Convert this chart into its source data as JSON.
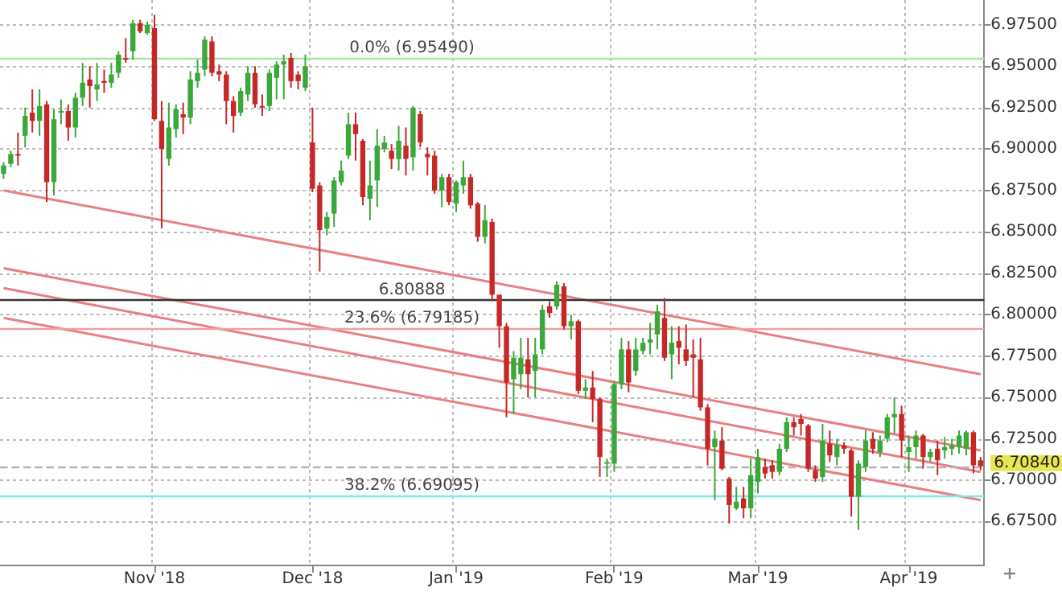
{
  "chart_data": {
    "type": "candlestick",
    "categories": [
      null,
      null,
      null,
      null,
      null,
      null,
      null,
      null,
      null,
      null,
      null,
      null,
      null,
      null,
      null,
      null,
      null,
      null,
      null,
      null,
      null,
      "Nov '18",
      null,
      null,
      null,
      null,
      null,
      null,
      null,
      null,
      null,
      null,
      null,
      null,
      null,
      null,
      null,
      null,
      null,
      null,
      null,
      null,
      null,
      "Dec '18",
      null,
      null,
      null,
      null,
      null,
      null,
      null,
      null,
      null,
      null,
      null,
      null,
      null,
      null,
      null,
      null,
      null,
      null,
      null,
      "Jan '19",
      null,
      null,
      null,
      null,
      null,
      null,
      null,
      null,
      null,
      null,
      null,
      null,
      null,
      null,
      null,
      null,
      null,
      null,
      null,
      null,
      null,
      "Feb '19",
      null,
      null,
      null,
      null,
      null,
      null,
      null,
      null,
      null,
      null,
      null,
      null,
      null,
      null,
      null,
      null,
      null,
      null,
      null,
      "Mar '19",
      null,
      null,
      null,
      null,
      null,
      null,
      null,
      null,
      null,
      null,
      null,
      null,
      null,
      null,
      null,
      null,
      null,
      null,
      null,
      null,
      "Apr '19",
      null,
      null,
      null,
      null,
      null,
      null,
      null,
      null,
      null,
      null
    ],
    "ohlc": [
      [
        6.885,
        6.892,
        6.882,
        6.89
      ],
      [
        6.891,
        6.899,
        6.889,
        6.897
      ],
      [
        6.897,
        6.91,
        6.89,
        6.896
      ],
      [
        6.908,
        6.925,
        6.901,
        6.92
      ],
      [
        6.922,
        6.936,
        6.91,
        6.917
      ],
      [
        6.917,
        6.936,
        6.908,
        6.926
      ],
      [
        6.927,
        6.929,
        6.868,
        6.88
      ],
      [
        6.88,
        6.924,
        6.872,
        6.918
      ],
      [
        6.922,
        6.93,
        6.915,
        6.923
      ],
      [
        6.923,
        6.927,
        6.905,
        6.913
      ],
      [
        6.913,
        6.934,
        6.907,
        6.931
      ],
      [
        6.931,
        6.952,
        6.926,
        6.94
      ],
      [
        6.942,
        6.95,
        6.925,
        6.938
      ],
      [
        6.936,
        6.952,
        6.929,
        6.939
      ],
      [
        6.941,
        6.948,
        6.934,
        6.94
      ],
      [
        6.94,
        6.952,
        6.937,
        6.945
      ],
      [
        6.946,
        6.959,
        6.943,
        6.957
      ],
      [
        6.955,
        6.967,
        6.952,
        6.954
      ],
      [
        6.959,
        6.978,
        6.954,
        6.976
      ],
      [
        6.976,
        6.978,
        6.97,
        6.971
      ],
      [
        6.97,
        6.977,
        6.969,
        6.975
      ],
      [
        6.973,
        6.981,
        6.917,
        6.918
      ],
      [
        6.917,
        6.929,
        6.852,
        6.9
      ],
      [
        6.894,
        6.928,
        6.89,
        6.913
      ],
      [
        6.912,
        6.927,
        6.907,
        6.924
      ],
      [
        6.921,
        6.928,
        6.909,
        6.919
      ],
      [
        6.919,
        6.947,
        6.915,
        6.942
      ],
      [
        6.941,
        6.954,
        6.937,
        6.946
      ],
      [
        6.948,
        6.968,
        6.944,
        6.966
      ],
      [
        6.965,
        6.968,
        6.944,
        6.946
      ],
      [
        6.947,
        6.951,
        6.941,
        6.945
      ],
      [
        6.945,
        6.947,
        6.915,
        6.929
      ],
      [
        6.929,
        6.932,
        6.91,
        6.92
      ],
      [
        6.922,
        6.937,
        6.92,
        6.935
      ],
      [
        6.933,
        6.95,
        6.929,
        6.946
      ],
      [
        6.946,
        6.95,
        6.925,
        6.927
      ],
      [
        6.926,
        6.933,
        6.92,
        6.925
      ],
      [
        6.926,
        6.948,
        6.923,
        6.946
      ],
      [
        6.943,
        6.953,
        6.93,
        6.951
      ],
      [
        6.951,
        6.957,
        6.93,
        6.953
      ],
      [
        6.955,
        6.958,
        6.937,
        6.941
      ],
      [
        6.945,
        6.947,
        6.936,
        6.941
      ],
      [
        6.937,
        6.957,
        6.935,
        6.95
      ],
      [
        6.904,
        6.925,
        6.874,
        6.876
      ],
      [
        6.878,
        6.88,
        6.826,
        6.851
      ],
      [
        6.852,
        6.862,
        6.848,
        6.859
      ],
      [
        6.861,
        6.883,
        6.853,
        6.881
      ],
      [
        6.88,
        6.893,
        6.878,
        6.887
      ],
      [
        6.896,
        6.922,
        6.894,
        6.915
      ],
      [
        6.915,
        6.922,
        6.893,
        6.909
      ],
      [
        6.905,
        6.906,
        6.866,
        6.871
      ],
      [
        6.87,
        6.893,
        6.857,
        6.878
      ],
      [
        6.881,
        6.912,
        6.865,
        6.902
      ],
      [
        6.9,
        6.908,
        6.898,
        6.904
      ],
      [
        6.899,
        6.903,
        6.888,
        6.894
      ],
      [
        6.894,
        6.914,
        6.887,
        6.905
      ],
      [
        6.902,
        6.913,
        6.884,
        6.894
      ],
      [
        6.895,
        6.926,
        6.887,
        6.925
      ],
      [
        6.921,
        6.923,
        6.901,
        6.904
      ],
      [
        6.897,
        6.901,
        6.884,
        6.895
      ],
      [
        6.896,
        6.899,
        6.873,
        6.875
      ],
      [
        6.875,
        6.885,
        6.865,
        6.883
      ],
      [
        6.883,
        6.885,
        6.866,
        6.868
      ],
      [
        6.867,
        6.881,
        6.862,
        6.88
      ],
      [
        6.878,
        6.893,
        6.873,
        6.883
      ],
      [
        6.883,
        6.885,
        6.864,
        6.866
      ],
      [
        6.867,
        6.868,
        6.844,
        6.847
      ],
      [
        6.847,
        6.866,
        6.843,
        6.857
      ],
      [
        6.856,
        6.858,
        6.808,
        6.812
      ],
      [
        6.812,
        6.812,
        6.78,
        6.793
      ],
      [
        6.793,
        6.795,
        6.738,
        6.759
      ],
      [
        6.761,
        6.778,
        6.74,
        6.774
      ],
      [
        6.764,
        6.786,
        6.755,
        6.774
      ],
      [
        6.773,
        6.786,
        6.75,
        6.764
      ],
      [
        6.766,
        6.786,
        6.75,
        6.776
      ],
      [
        6.779,
        6.806,
        6.776,
        6.803
      ],
      [
        6.805,
        6.808,
        6.798,
        6.801
      ],
      [
        6.805,
        6.82,
        6.803,
        6.818
      ],
      [
        6.817,
        6.819,
        6.791,
        6.793
      ],
      [
        6.793,
        6.8,
        6.785,
        6.796
      ],
      [
        6.796,
        6.797,
        6.752,
        6.754
      ],
      [
        6.754,
        6.761,
        6.749,
        6.756
      ],
      [
        6.756,
        6.766,
        6.735,
        6.749
      ],
      [
        6.749,
        6.75,
        6.702,
        6.714
      ],
      [
        6.71,
        6.713,
        6.702,
        6.711
      ],
      [
        6.71,
        6.76,
        6.705,
        6.758
      ],
      [
        6.758,
        6.786,
        6.755,
        6.779
      ],
      [
        6.779,
        6.784,
        6.753,
        6.759
      ],
      [
        6.766,
        6.786,
        6.763,
        6.779
      ],
      [
        6.778,
        6.786,
        6.776,
        6.783
      ],
      [
        6.783,
        6.795,
        6.776,
        6.785
      ],
      [
        6.788,
        6.806,
        6.779,
        6.802
      ],
      [
        6.798,
        6.81,
        6.772,
        6.774
      ],
      [
        6.776,
        6.793,
        6.761,
        6.783
      ],
      [
        6.784,
        6.793,
        6.77,
        6.78
      ],
      [
        6.779,
        6.794,
        6.769,
        6.772
      ],
      [
        6.776,
        6.785,
        6.75,
        6.774
      ],
      [
        6.773,
        6.786,
        6.742,
        6.744
      ],
      [
        6.744,
        6.746,
        6.709,
        6.719
      ],
      [
        6.72,
        6.73,
        6.688,
        6.725
      ],
      [
        6.724,
        6.732,
        6.706,
        6.707
      ],
      [
        6.701,
        6.702,
        6.674,
        6.685
      ],
      [
        6.683,
        6.696,
        6.682,
        6.687
      ],
      [
        6.689,
        6.696,
        6.677,
        6.683
      ],
      [
        6.683,
        6.713,
        6.677,
        6.703
      ],
      [
        6.699,
        6.719,
        6.692,
        6.714
      ],
      [
        6.708,
        6.713,
        6.701,
        6.704
      ],
      [
        6.709,
        6.712,
        6.701,
        6.705
      ],
      [
        6.705,
        6.722,
        6.703,
        6.719
      ],
      [
        6.719,
        6.738,
        6.717,
        6.735
      ],
      [
        6.735,
        6.738,
        6.727,
        6.732
      ],
      [
        6.737,
        6.74,
        6.727,
        6.734
      ],
      [
        6.733,
        6.734,
        6.705,
        6.707
      ],
      [
        6.706,
        6.709,
        6.699,
        6.701
      ],
      [
        6.702,
        6.734,
        6.699,
        6.724
      ],
      [
        6.722,
        6.73,
        6.711,
        6.715
      ],
      [
        6.714,
        6.725,
        6.709,
        6.721
      ],
      [
        6.721,
        6.723,
        6.716,
        6.719
      ],
      [
        6.718,
        6.719,
        6.678,
        6.69
      ],
      [
        6.69,
        6.712,
        6.67,
        6.71
      ],
      [
        6.708,
        6.73,
        6.705,
        6.724
      ],
      [
        6.725,
        6.729,
        6.716,
        6.719
      ],
      [
        6.717,
        6.727,
        6.714,
        6.724
      ],
      [
        6.725,
        6.74,
        6.723,
        6.738
      ],
      [
        6.738,
        6.75,
        6.728,
        6.74
      ],
      [
        6.74,
        6.745,
        6.714,
        6.724
      ],
      [
        6.717,
        6.727,
        6.705,
        6.72
      ],
      [
        6.72,
        6.73,
        6.713,
        6.727
      ],
      [
        6.727,
        6.728,
        6.707,
        6.714
      ],
      [
        6.714,
        6.719,
        6.711,
        6.717
      ],
      [
        6.719,
        6.724,
        6.703,
        6.712
      ],
      [
        6.718,
        6.726,
        6.713,
        6.72
      ],
      [
        6.719,
        6.725,
        6.715,
        6.721
      ],
      [
        6.72,
        6.73,
        6.716,
        6.727
      ],
      [
        6.719,
        6.73,
        6.715,
        6.729
      ],
      [
        6.729,
        6.73,
        6.704,
        6.709
      ],
      [
        6.712,
        6.714,
        6.706,
        6.7084
      ]
    ],
    "colors": [
      "#3aa83a",
      "#3aa83a",
      "#c62828",
      "#3aa83a",
      "#c62828",
      "#3aa83a",
      "#c62828",
      "#3aa83a",
      "#3aa83a",
      "#c62828",
      "#3aa83a",
      "#3aa83a",
      "#c62828",
      "#3aa83a",
      "#c62828",
      "#3aa83a",
      "#3aa83a",
      "#c62828",
      "#3aa83a",
      "#c62828",
      "#3aa83a",
      "#c62828",
      "#c62828",
      "#3aa83a",
      "#3aa83a",
      "#c62828",
      "#3aa83a",
      "#3aa83a",
      "#3aa83a",
      "#c62828",
      "#c62828",
      "#c62828",
      "#c62828",
      "#3aa83a",
      "#3aa83a",
      "#c62828",
      "#c62828",
      "#3aa83a",
      "#3aa83a",
      "#3aa83a",
      "#c62828",
      "#c62828",
      "#3aa83a",
      "#c62828",
      "#c62828",
      "#3aa83a",
      "#3aa83a",
      "#3aa83a",
      "#3aa83a",
      "#c62828",
      "#c62828",
      "#3aa83a",
      "#3aa83a",
      "#3aa83a",
      "#c62828",
      "#3aa83a",
      "#c62828",
      "#3aa83a",
      "#c62828",
      "#c62828",
      "#c62828",
      "#3aa83a",
      "#c62828",
      "#3aa83a",
      "#3aa83a",
      "#c62828",
      "#c62828",
      "#3aa83a",
      "#c62828",
      "#c62828",
      "#c62828",
      "#3aa83a",
      "#3aa83a",
      "#c62828",
      "#3aa83a",
      "#3aa83a",
      "#c62828",
      "#3aa83a",
      "#c62828",
      "#3aa83a",
      "#c62828",
      "#3aa83a",
      "#c62828",
      "#c62828",
      "#3aa83a",
      "#3aa83a",
      "#3aa83a",
      "#c62828",
      "#3aa83a",
      "#3aa83a",
      "#3aa83a",
      "#3aa83a",
      "#c62828",
      "#3aa83a",
      "#c62828",
      "#c62828",
      "#c62828",
      "#c62828",
      "#c62828",
      "#3aa83a",
      "#c62828",
      "#c62828",
      "#3aa83a",
      "#c62828",
      "#3aa83a",
      "#3aa83a",
      "#c62828",
      "#c62828",
      "#3aa83a",
      "#3aa83a",
      "#c62828",
      "#c62828",
      "#c62828",
      "#c62828",
      "#3aa83a",
      "#c62828",
      "#3aa83a",
      "#c62828",
      "#c62828",
      "#3aa83a",
      "#3aa83a",
      "#c62828",
      "#3aa83a",
      "#3aa83a",
      "#3aa83a",
      "#c62828",
      "#3aa83a",
      "#3aa83a",
      "#c62828",
      "#3aa83a",
      "#c62828",
      "#3aa83a",
      "#3aa83a",
      "#3aa83a",
      "#3aa83a",
      "#c62828",
      "#c62828"
    ],
    "series": [
      {
        "type": "line",
        "color": "#e88080",
        "values": [
          6.875,
          null,
          null,
          null,
          null,
          null,
          null,
          null,
          null,
          null,
          null,
          null,
          null,
          null,
          null,
          null,
          null,
          null,
          null,
          null,
          null,
          null,
          null,
          null,
          null,
          null,
          null,
          null,
          null,
          null,
          null,
          null,
          null,
          null,
          null,
          null,
          null,
          null,
          null,
          null,
          null,
          null,
          null,
          null,
          null,
          null,
          null,
          null,
          null,
          null,
          null,
          null,
          null,
          null,
          null,
          null,
          null,
          null,
          null,
          null,
          null,
          null,
          null,
          null,
          null,
          null,
          null,
          null,
          null,
          null,
          null,
          null,
          null,
          null,
          null,
          null,
          null,
          null,
          null,
          null,
          null,
          null,
          null,
          null,
          null,
          null,
          null,
          null,
          null,
          null,
          null,
          null,
          null,
          null,
          null,
          null,
          null,
          null,
          null,
          null,
          null,
          null,
          null,
          null,
          null,
          null,
          null,
          null,
          null,
          null,
          null,
          null,
          null,
          null,
          null,
          null,
          null,
          null,
          null,
          null,
          null,
          null,
          null,
          null,
          null,
          null,
          null,
          null,
          null,
          null,
          null,
          null,
          null,
          null,
          null,
          null,
          6.764
        ]
      },
      {
        "type": "line",
        "color": "#e88080",
        "values": [
          6.828,
          null,
          null,
          null,
          null,
          null,
          null,
          null,
          null,
          null,
          null,
          null,
          null,
          null,
          null,
          null,
          null,
          null,
          null,
          null,
          null,
          null,
          null,
          null,
          null,
          null,
          null,
          null,
          null,
          null,
          null,
          null,
          null,
          null,
          null,
          null,
          null,
          null,
          null,
          null,
          null,
          null,
          null,
          null,
          null,
          null,
          null,
          null,
          null,
          null,
          null,
          null,
          null,
          null,
          null,
          null,
          null,
          null,
          null,
          null,
          null,
          null,
          null,
          null,
          null,
          null,
          null,
          null,
          null,
          null,
          null,
          null,
          null,
          null,
          null,
          null,
          null,
          null,
          null,
          null,
          null,
          null,
          null,
          null,
          null,
          null,
          null,
          null,
          null,
          null,
          null,
          null,
          null,
          null,
          null,
          null,
          null,
          null,
          null,
          null,
          null,
          null,
          null,
          null,
          null,
          null,
          null,
          null,
          null,
          null,
          null,
          null,
          null,
          null,
          null,
          null,
          null,
          null,
          null,
          null,
          null,
          null,
          null,
          null,
          null,
          null,
          null,
          null,
          null,
          null,
          null,
          null,
          null,
          null,
          null,
          null,
          6.718
        ]
      },
      {
        "type": "line",
        "color": "#e88080",
        "values": [
          6.816,
          null,
          null,
          null,
          null,
          null,
          null,
          null,
          null,
          null,
          null,
          null,
          null,
          null,
          null,
          null,
          null,
          null,
          null,
          null,
          null,
          null,
          null,
          null,
          null,
          null,
          null,
          null,
          null,
          null,
          null,
          null,
          null,
          null,
          null,
          null,
          null,
          null,
          null,
          null,
          null,
          null,
          null,
          null,
          null,
          null,
          null,
          null,
          null,
          null,
          null,
          null,
          null,
          null,
          null,
          null,
          null,
          null,
          null,
          null,
          null,
          null,
          null,
          null,
          null,
          null,
          null,
          null,
          null,
          null,
          null,
          null,
          null,
          null,
          null,
          null,
          null,
          null,
          null,
          null,
          null,
          null,
          null,
          null,
          null,
          null,
          null,
          null,
          null,
          null,
          null,
          null,
          null,
          null,
          null,
          null,
          null,
          null,
          null,
          null,
          null,
          null,
          null,
          null,
          null,
          null,
          null,
          null,
          null,
          null,
          null,
          null,
          null,
          null,
          null,
          null,
          null,
          null,
          null,
          null,
          null,
          null,
          null,
          null,
          null,
          null,
          null,
          null,
          null,
          null,
          null,
          null,
          null,
          null,
          null,
          null,
          6.705
        ]
      },
      {
        "type": "line",
        "color": "#e88080",
        "values": [
          6.798,
          null,
          null,
          null,
          null,
          null,
          null,
          null,
          null,
          null,
          null,
          null,
          null,
          null,
          null,
          null,
          null,
          null,
          null,
          null,
          null,
          null,
          null,
          null,
          null,
          null,
          null,
          null,
          null,
          null,
          null,
          null,
          null,
          null,
          null,
          null,
          null,
          null,
          null,
          null,
          null,
          null,
          null,
          null,
          null,
          null,
          null,
          null,
          null,
          null,
          null,
          null,
          null,
          null,
          null,
          null,
          null,
          null,
          null,
          null,
          null,
          null,
          null,
          null,
          null,
          null,
          null,
          null,
          null,
          null,
          null,
          null,
          null,
          null,
          null,
          null,
          null,
          null,
          null,
          null,
          null,
          null,
          null,
          null,
          null,
          null,
          null,
          null,
          null,
          null,
          null,
          null,
          null,
          null,
          null,
          null,
          null,
          null,
          null,
          null,
          null,
          null,
          null,
          null,
          null,
          null,
          null,
          null,
          null,
          null,
          null,
          null,
          null,
          null,
          null,
          null,
          null,
          null,
          null,
          null,
          null,
          null,
          null,
          null,
          null,
          null,
          null,
          null,
          null,
          null,
          null,
          null,
          null,
          null,
          null,
          null,
          6.688
        ]
      }
    ],
    "ylim": [
      6.649,
      6.99
    ],
    "yticks": [
      {
        "value": 6.675,
        "label": "6.67500"
      },
      {
        "value": 6.7,
        "label": "6.70000"
      },
      {
        "value": 6.725,
        "label": "6.72500"
      },
      {
        "value": 6.75,
        "label": "6.75000"
      },
      {
        "value": 6.775,
        "label": "6.77500"
      },
      {
        "value": 6.8,
        "label": "6.80000"
      },
      {
        "value": 6.825,
        "label": "6.82500"
      },
      {
        "value": 6.85,
        "label": "6.85000"
      },
      {
        "value": 6.875,
        "label": "6.87500"
      },
      {
        "value": 6.9,
        "label": "6.90000"
      },
      {
        "value": 6.925,
        "label": "6.92500"
      },
      {
        "value": 6.95,
        "label": "6.95000"
      },
      {
        "value": 6.975,
        "label": "6.97500"
      }
    ],
    "grid": true,
    "ref_lines": [
      {
        "axis": "y",
        "value": 6.9549,
        "label": "0.0% (6.95490)",
        "color": "#a6e6a0"
      },
      {
        "axis": "y",
        "value": 6.80888,
        "label": "6.80888",
        "color": "#333333"
      },
      {
        "axis": "y",
        "value": 6.79185,
        "label": "23.6% (6.79185)",
        "color": "#f0a0a0"
      },
      {
        "axis": "y",
        "value": 6.69095,
        "label": "38.2% (6.69095)",
        "color": "#80e6ee"
      },
      {
        "axis": "y",
        "value": 6.7084,
        "label": "6.70840",
        "color": "#b4b4b4",
        "line_style": "dashed"
      }
    ]
  }
}
